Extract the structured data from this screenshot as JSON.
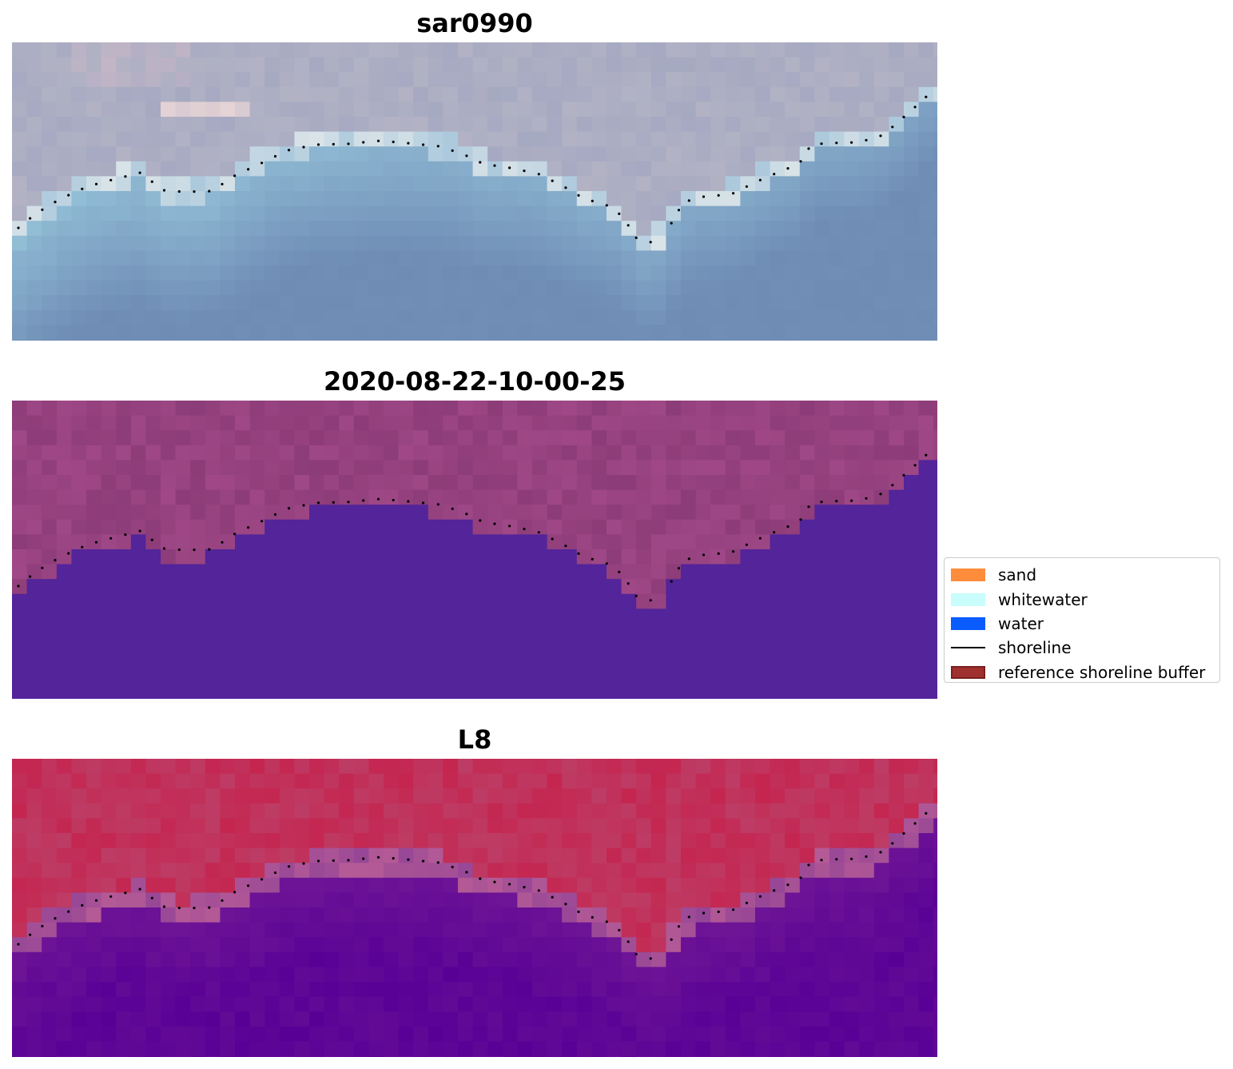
{
  "panels": [
    {
      "title": "sar0990",
      "style": "rgb"
    },
    {
      "title": "2020-08-22-10-00-25",
      "style": "classified"
    },
    {
      "title": "L8",
      "style": "index"
    }
  ],
  "legend": {
    "items": [
      {
        "label": "sand",
        "type": "patch",
        "color": "#ff8c3a"
      },
      {
        "label": "whitewater",
        "type": "patch",
        "color": "#c8fdfb"
      },
      {
        "label": "water",
        "type": "patch",
        "color": "#0a5cff"
      },
      {
        "label": "shoreline",
        "type": "line",
        "color": "#000000"
      },
      {
        "label": "reference shoreline buffer",
        "type": "patch",
        "color": "#a0302f",
        "edge": "#7a1f1f"
      }
    ]
  },
  "colors": {
    "water_class": "#53249a",
    "land_class": "#9b4585",
    "shoreline_dots": "#000000"
  }
}
